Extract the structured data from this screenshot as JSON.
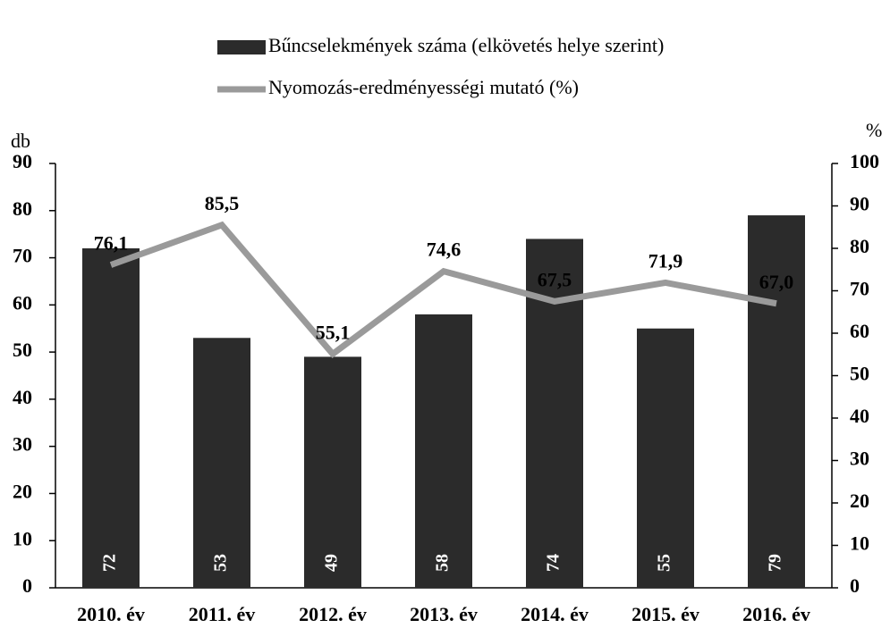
{
  "chart_data": {
    "type": "bar",
    "categories": [
      "2010. év",
      "2011. év",
      "2012. év",
      "2013. év",
      "2014. év",
      "2015. év",
      "2016. év"
    ],
    "series": [
      {
        "name": "Bűncselekmények száma (elkövetés helye szerint)",
        "type": "bar",
        "color": "#2b2b2b",
        "values": [
          72,
          53,
          49,
          58,
          74,
          55,
          79
        ]
      },
      {
        "name": "Nyomozás-eredményességi mutató (%)",
        "type": "line",
        "axis": "y2",
        "color": "#9a9a9a",
        "values": [
          76.1,
          85.5,
          55.1,
          74.6,
          67.5,
          71.9,
          67.0
        ],
        "value_labels": [
          "76,1",
          "85,5",
          "55,1",
          "74,6",
          "67,5",
          "71,9",
          "67,0"
        ]
      }
    ],
    "ylabel": "db",
    "y2label": "%",
    "ylim": [
      0,
      90
    ],
    "yticks": [
      0,
      10,
      20,
      30,
      40,
      50,
      60,
      70,
      80,
      90
    ],
    "y2lim": [
      0,
      100
    ],
    "y2ticks": [
      0,
      10,
      20,
      30,
      40,
      50,
      60,
      70,
      80,
      90,
      100
    ],
    "legend": "top"
  }
}
